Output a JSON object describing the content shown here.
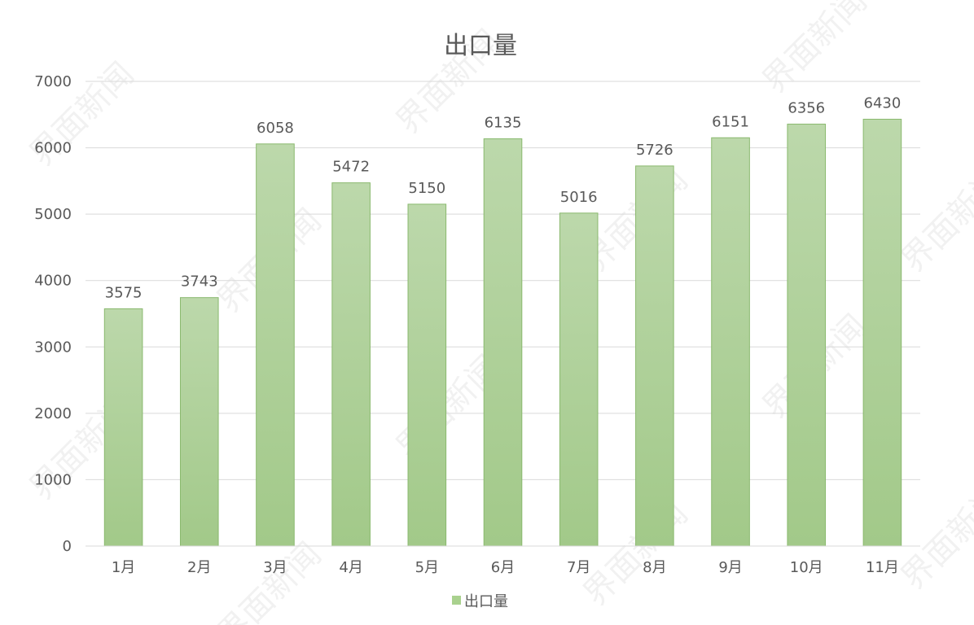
{
  "chart_data": {
    "type": "bar",
    "title": "出口量",
    "categories": [
      "1月",
      "2月",
      "3月",
      "4月",
      "5月",
      "6月",
      "7月",
      "8月",
      "9月",
      "10月",
      "11月"
    ],
    "series": [
      {
        "name": "出口量",
        "values": [
          3575,
          3743,
          6058,
          5472,
          5150,
          6135,
          5016,
          5726,
          6151,
          6356,
          6430
        ],
        "color": "#a9d18e"
      }
    ],
    "ylim": [
      0,
      7000
    ],
    "yticks": [
      0,
      1000,
      2000,
      3000,
      4000,
      5000,
      6000,
      7000
    ],
    "grid": true,
    "legend": "bottom",
    "data_labels": true
  },
  "watermark": {
    "text": "界面新闻"
  },
  "colors": {
    "bar_top": "#bcd8ab",
    "bar_bottom": "#a2c989",
    "bar_stroke": "#8ab96e",
    "grid": "#d9d9d9",
    "text": "#595959"
  }
}
